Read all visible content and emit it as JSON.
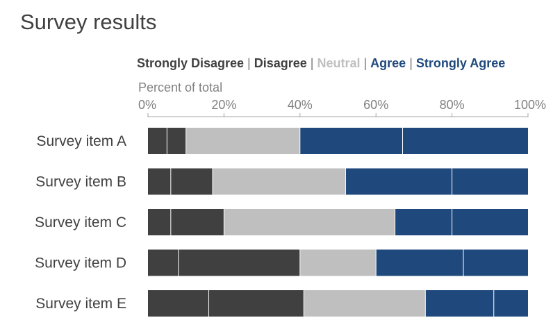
{
  "title": "Survey results",
  "chart_data": {
    "type": "bar",
    "orientation": "horizontal",
    "stacked": true,
    "title": "Survey results",
    "xlabel": "Percent of total",
    "xlim": [
      0,
      100
    ],
    "x_ticks": [
      "0%",
      "20%",
      "40%",
      "60%",
      "80%",
      "100%"
    ],
    "x_tick_values": [
      0,
      20,
      40,
      60,
      80,
      100
    ],
    "grid": false,
    "legend_position": "top",
    "categories": [
      "Survey item A",
      "Survey item B",
      "Survey item C",
      "Survey item D",
      "Survey item E"
    ],
    "series": [
      {
        "name": "Strongly Disagree",
        "color": "#404040",
        "values": [
          5,
          6,
          6,
          8,
          16
        ]
      },
      {
        "name": "Disagree",
        "color": "#404040",
        "values": [
          5,
          11,
          14,
          32,
          25
        ]
      },
      {
        "name": "Neutral",
        "color": "#bfbfbf",
        "values": [
          30,
          35,
          45,
          20,
          32
        ]
      },
      {
        "name": "Agree",
        "color": "#1f497d",
        "values": [
          27,
          28,
          15,
          23,
          18
        ]
      },
      {
        "name": "Strongly Agree",
        "color": "#1f497d",
        "values": [
          33,
          20,
          20,
          17,
          9
        ]
      }
    ]
  },
  "legend": {
    "items": [
      {
        "label": "Strongly Disagree",
        "color": "#404040"
      },
      {
        "label": "Disagree",
        "color": "#404040"
      },
      {
        "label": "Neutral",
        "color": "#bfbfbf"
      },
      {
        "label": "Agree",
        "color": "#1f497d"
      },
      {
        "label": "Strongly Agree",
        "color": "#1f497d"
      }
    ],
    "separator": "|"
  }
}
